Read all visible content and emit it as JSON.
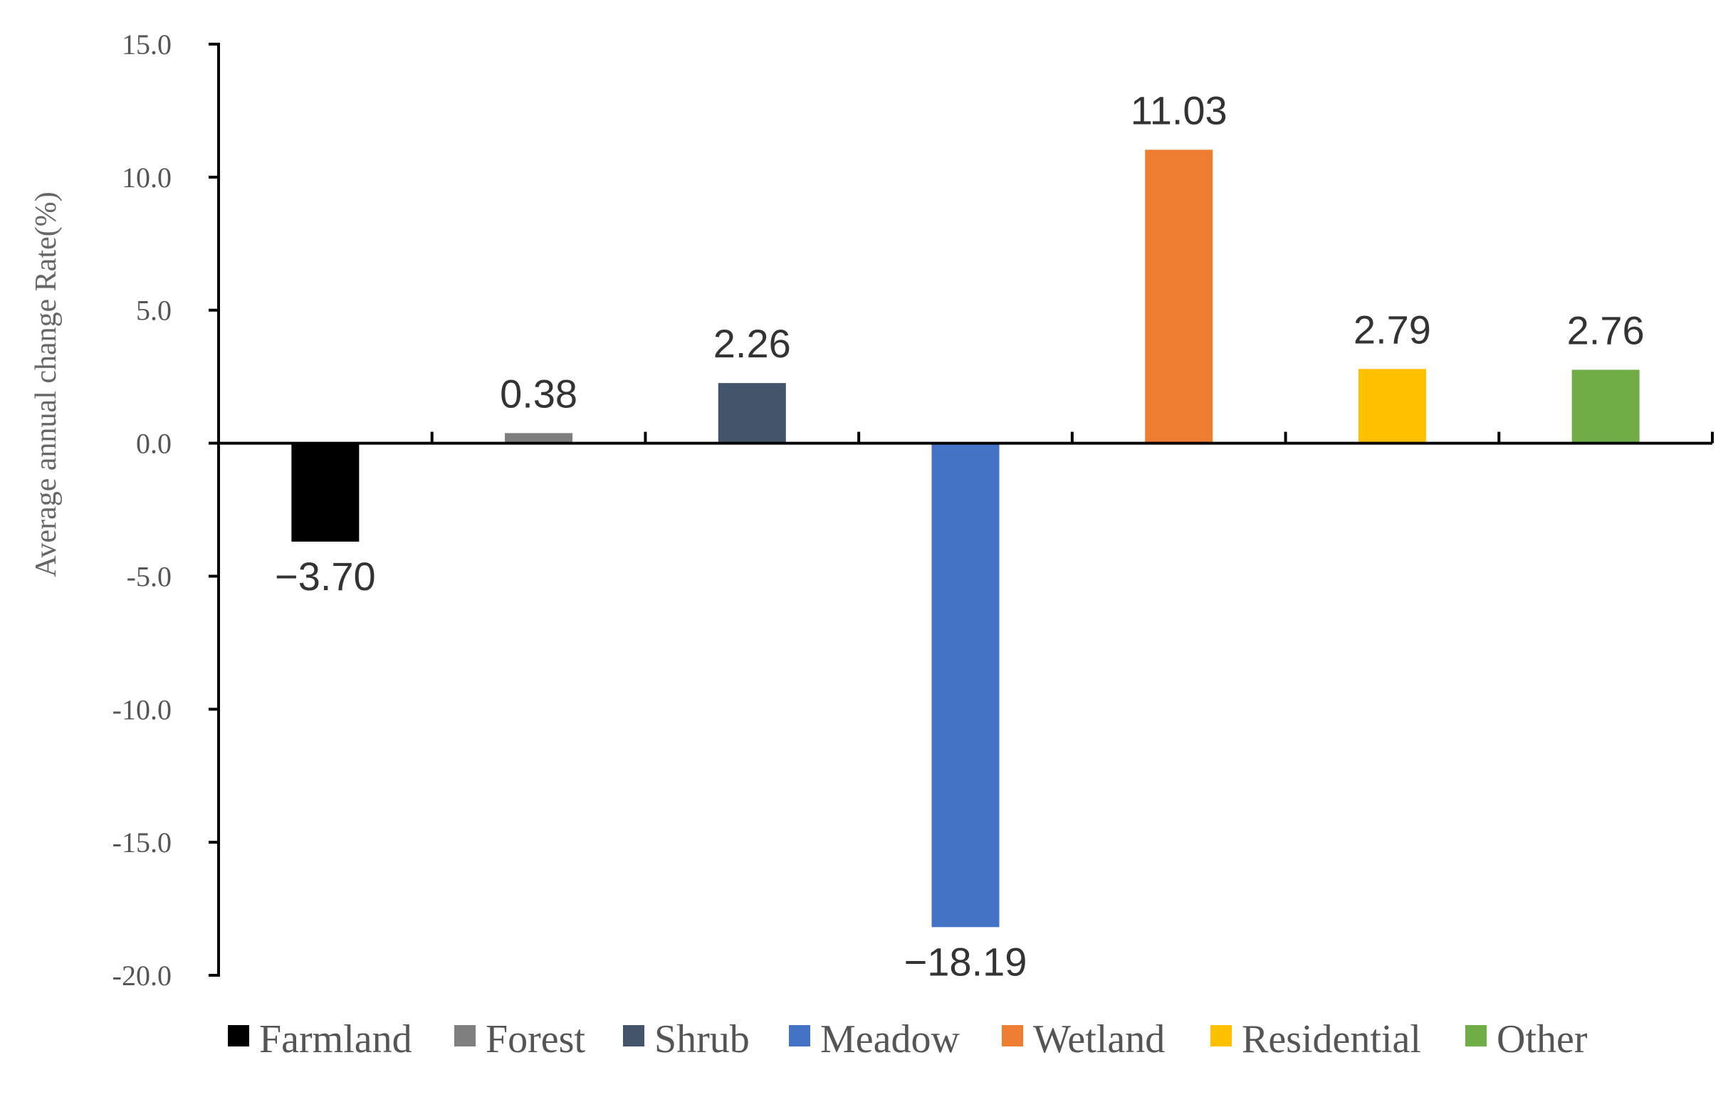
{
  "chart_data": {
    "type": "bar",
    "title": "",
    "xlabel": "",
    "ylabel": "Average annual change Rate(%)",
    "ylim": [
      -20,
      15
    ],
    "yticks": [
      15,
      10,
      5,
      0,
      -5,
      -10,
      -15,
      -20
    ],
    "ytick_labels": [
      "15.0",
      "10.0",
      "5.0",
      "0.0",
      "-5.0",
      "-10.0",
      "-15.0",
      "-20.0"
    ],
    "categories": [
      "Farmland",
      "Forest",
      "Shrub",
      "Meadow",
      "Wetland",
      "Residential",
      "Other"
    ],
    "values": [
      -3.7,
      0.38,
      2.26,
      -18.19,
      11.03,
      2.79,
      2.76
    ],
    "data_labels": [
      "−3.70",
      "0.38",
      "2.26",
      "−18.19",
      "11.03",
      "2.79",
      "2.76"
    ],
    "colors": [
      "#000000",
      "#7f7f7f",
      "#44546a",
      "#4472c4",
      "#ed7d31",
      "#ffc000",
      "#70ad47"
    ],
    "legend": {
      "position": "bottom",
      "entries": [
        "Farmland",
        "Forest",
        "Shrub",
        "Meadow",
        "Wetland",
        "Residential",
        "Other"
      ]
    },
    "grid": false
  }
}
